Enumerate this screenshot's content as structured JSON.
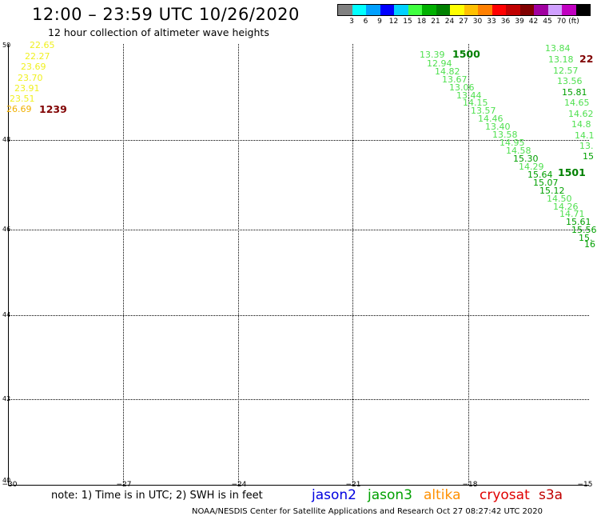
{
  "title": "12:00 – 23:59 UTC 10/26/2020",
  "subtitle": "12 hour collection of altimeter wave heights",
  "scale": {
    "unit": "(ft)",
    "colors": [
      "#808080",
      "#00ffff",
      "#00a0ff",
      "#0000ff",
      "#00d0ff",
      "#40ff40",
      "#00b000",
      "#008000",
      "#ffff00",
      "#ffc000",
      "#ff8000",
      "#ff0000",
      "#c00000",
      "#800000",
      "#a000a0",
      "#d0a0ff",
      "#c000c0",
      "#000000"
    ],
    "labels": [
      "3",
      "6",
      "9",
      "12",
      "15",
      "18",
      "21",
      "24",
      "27",
      "30",
      "33",
      "36",
      "39",
      "42",
      "45",
      "70"
    ]
  },
  "axes": {
    "lat_labels": [
      "50",
      "48",
      "46",
      "44",
      "42",
      "40"
    ],
    "lon_labels": [
      "−30",
      "−27",
      "−24",
      "−21",
      "−18",
      "−15"
    ]
  },
  "observations": [
    {
      "text": "22.65",
      "color": "#f0f020"
    },
    {
      "text": "22.27",
      "color": "#f0f020"
    },
    {
      "text": "23.69",
      "color": "#f0f020"
    },
    {
      "text": "23.70",
      "color": "#f0f020"
    },
    {
      "text": "23.91",
      "color": "#f0f020"
    },
    {
      "text": "23.51",
      "color": "#f0f020"
    },
    {
      "text": "26.69",
      "color": "#f0b000"
    },
    {
      "text": "13.39",
      "color": "#50e050"
    },
    {
      "text": "12.94",
      "color": "#50e050"
    },
    {
      "text": "14.82",
      "color": "#50e050"
    },
    {
      "text": "13.67",
      "color": "#50e050"
    },
    {
      "text": "13.06",
      "color": "#50e050"
    },
    {
      "text": "13.44",
      "color": "#50e050"
    },
    {
      "text": "14.15",
      "color": "#50e050"
    },
    {
      "text": "13.57",
      "color": "#50e050"
    },
    {
      "text": "14.46",
      "color": "#50e050"
    },
    {
      "text": "13.40",
      "color": "#50e050"
    },
    {
      "text": "13.58",
      "color": "#50e050"
    },
    {
      "text": "14.95",
      "color": "#50e050"
    },
    {
      "text": "14.58",
      "color": "#50e050"
    },
    {
      "text": "15.30",
      "color": "#00a000"
    },
    {
      "text": "14.29",
      "color": "#50e050"
    },
    {
      "text": "15.64",
      "color": "#00a000"
    },
    {
      "text": "15.07",
      "color": "#00a000"
    },
    {
      "text": "15.12",
      "color": "#00a000"
    },
    {
      "text": "14.50",
      "color": "#50e050"
    },
    {
      "text": "14.26",
      "color": "#50e050"
    },
    {
      "text": "14.71",
      "color": "#50e050"
    },
    {
      "text": "15.61",
      "color": "#00a000"
    },
    {
      "text": "15.56",
      "color": "#00a000"
    },
    {
      "text": "15.",
      "color": "#00a000"
    },
    {
      "text": "16",
      "color": "#00a000"
    },
    {
      "text": "13.84",
      "color": "#50e050"
    },
    {
      "text": "13.18",
      "color": "#50e050"
    },
    {
      "text": "12.57",
      "color": "#50e050"
    },
    {
      "text": "13.56",
      "color": "#50e050"
    },
    {
      "text": "15.81",
      "color": "#00a000"
    },
    {
      "text": "14.65",
      "color": "#50e050"
    },
    {
      "text": "14.62",
      "color": "#50e050"
    },
    {
      "text": "14.8",
      "color": "#50e050"
    },
    {
      "text": "14.1",
      "color": "#50e050"
    },
    {
      "text": "13.",
      "color": "#50e050"
    },
    {
      "text": "15",
      "color": "#00a000"
    }
  ],
  "time_markers": [
    {
      "text": "1239",
      "color": "#800000"
    },
    {
      "text": "1500",
      "color": "#008000"
    },
    {
      "text": "1501",
      "color": "#008000"
    },
    {
      "text": "22",
      "color": "#800000"
    }
  ],
  "note": "note:  1)  Time is in UTC;  2)  SWH is in feet",
  "satellites": [
    {
      "name": "jason2",
      "color": "#0000e0"
    },
    {
      "name": "jason3",
      "color": "#00a000"
    },
    {
      "name": "altika",
      "color": "#ff9000"
    },
    {
      "name": "cryosat",
      "color": "#e00000"
    },
    {
      "name": "s3a",
      "color": "#c00000"
    }
  ],
  "footer": "NOAA/NESDIS Center for Satellite Applications and Research    Oct 27 08:27:42 UTC 2020"
}
